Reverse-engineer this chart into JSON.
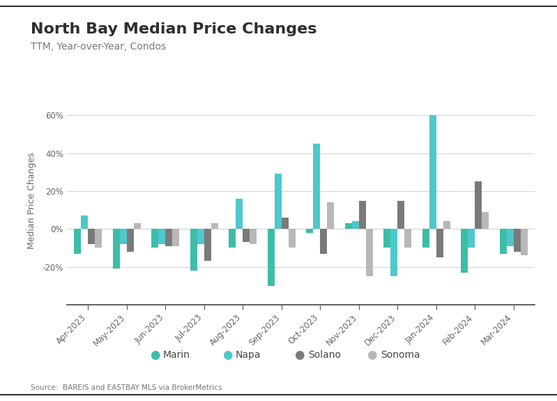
{
  "title": "North Bay Median Price Changes",
  "subtitle": "TTM, Year-over-Year, Condos",
  "source": "Source:  BAREIS and EASTBAY MLS via BrokerMetrics",
  "ylabel": "Median Price Changes",
  "categories": [
    "Apr-2023",
    "May-2023",
    "Jun-2023",
    "Jul-2023",
    "Aug-2023",
    "Sep-2023",
    "Oct-2023",
    "Nov-2023",
    "Dec-2023",
    "Jan-2024",
    "Feb-2024",
    "Mar-2024"
  ],
  "series": {
    "Marin": [
      -13,
      -21,
      -10,
      -22,
      -10,
      -30,
      -2,
      3,
      -10,
      -10,
      -23,
      -13
    ],
    "Napa": [
      7,
      -8,
      -8,
      -8,
      16,
      29,
      45,
      4,
      -25,
      60,
      -10,
      -9
    ],
    "Solano": [
      -8,
      -12,
      -9,
      -17,
      -7,
      6,
      -13,
      15,
      15,
      -15,
      25,
      -12
    ],
    "Sonoma": [
      -10,
      3,
      -9,
      3,
      -8,
      -10,
      14,
      -25,
      -10,
      4,
      9,
      -14
    ]
  },
  "colors": {
    "Marin": "#3dbda8",
    "Napa": "#4ec8cc",
    "Solano": "#7a7a7a",
    "Sonoma": "#b8b8b8"
  },
  "ylim": [
    -40,
    70
  ],
  "yticks": [
    -20,
    0,
    20,
    40,
    60
  ],
  "bar_width": 0.18,
  "background_color": "#ffffff",
  "grid_color": "#d5d5d5",
  "title_fontsize": 16,
  "subtitle_fontsize": 10,
  "tick_fontsize": 8.5,
  "label_fontsize": 9,
  "source_fontsize": 7.5,
  "legend_fontsize": 10
}
